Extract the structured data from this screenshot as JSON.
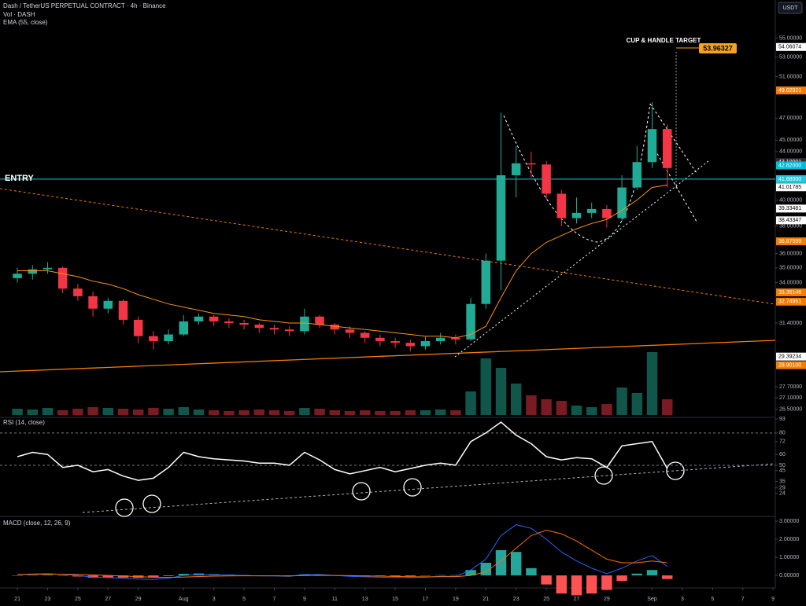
{
  "chart_data": [
    {
      "type": "candlestick",
      "title": "Dash / TetherUS PERPETUAL CONTRACT · 4h · Binance",
      "axis_unit": "USDT",
      "log_scale": true,
      "up_color": "#22ab94",
      "down_color": "#f23645",
      "xlim": [
        -1.15,
        50.15
      ],
      "xticks": [
        {
          "value": 0,
          "label": "21"
        },
        {
          "value": 2,
          "label": "23"
        },
        {
          "value": 4,
          "label": "25"
        },
        {
          "value": 6,
          "label": "27"
        },
        {
          "value": 8,
          "label": "29"
        },
        {
          "value": 11,
          "label": "Aug"
        },
        {
          "value": 13,
          "label": "3"
        },
        {
          "value": 15,
          "label": "5"
        },
        {
          "value": 17,
          "label": "7"
        },
        {
          "value": 19,
          "label": "9"
        },
        {
          "value": 21,
          "label": "11"
        },
        {
          "value": 23,
          "label": "13"
        },
        {
          "value": 25,
          "label": "15"
        },
        {
          "value": 27,
          "label": "17"
        },
        {
          "value": 29,
          "label": "19"
        },
        {
          "value": 31,
          "label": "21"
        },
        {
          "value": 33,
          "label": "23"
        },
        {
          "value": 35,
          "label": "25"
        },
        {
          "value": 37,
          "label": "27"
        },
        {
          "value": 39,
          "label": "29"
        },
        {
          "value": 42,
          "label": "Sep"
        },
        {
          "value": 44,
          "label": "3"
        },
        {
          "value": 46,
          "label": "5"
        },
        {
          "value": 48,
          "label": "7"
        },
        {
          "value": 50,
          "label": "9"
        }
      ],
      "ylim": [
        26.2,
        59.3
      ],
      "yticks": [
        {
          "value": 55,
          "label": "55.00000"
        },
        {
          "value": 53,
          "label": "53.00000"
        },
        {
          "value": 51,
          "label": "51.00000"
        },
        {
          "value": 47,
          "label": "47.00000"
        },
        {
          "value": 45,
          "label": "45.00000"
        },
        {
          "value": 44,
          "label": "44.00000"
        },
        {
          "value": 40,
          "label": "40.00000"
        },
        {
          "value": 38,
          "label": "38.00000"
        },
        {
          "value": 36,
          "label": "36.00000"
        },
        {
          "value": 35,
          "label": "35.00000"
        },
        {
          "value": 34,
          "label": "34.00000"
        },
        {
          "value": 31.4,
          "label": "31.40000"
        },
        {
          "value": 27.7,
          "label": "27.70000"
        },
        {
          "value": 27.1,
          "label": "27.10000"
        },
        {
          "value": 26.5,
          "label": "26.50000"
        }
      ],
      "price_labels": [
        {
          "value": 54.06074,
          "label": "54.06074",
          "color": "#ffffff",
          "text_color": "#000000"
        },
        {
          "value": 49.62921,
          "label": "49.62921",
          "color": "#f57c00",
          "text_color": "#ffffff"
        },
        {
          "value": 43.10001,
          "label": "43.10001",
          "color": "#2a2e39",
          "text_color": "#ffffff"
        },
        {
          "value": 42.82,
          "label": "42.82000",
          "color": "#00bcd4",
          "text_color": "#ffffff"
        },
        {
          "value": 41.01785,
          "label": "41.01785",
          "color": "#ffffff",
          "text_color": "#000000"
        },
        {
          "value": 39.33481,
          "label": "39.33481",
          "color": "#ffffff",
          "text_color": "#000000"
        },
        {
          "value": 38.43347,
          "label": "38.43347",
          "color": "#ffffff",
          "text_color": "#000000"
        },
        {
          "value": 36.87599,
          "label": "36.87599",
          "color": "#f57c00",
          "text_color": "#ffffff"
        },
        {
          "value": 33.35146,
          "label": "33.35146",
          "color": "#f57c00",
          "text_color": "#ffffff"
        },
        {
          "value": 32.74961,
          "label": "32.74961",
          "color": "#f57c00",
          "text_color": "#ffffff"
        },
        {
          "value": 29.39234,
          "label": "29.39234",
          "color": "#ffffff",
          "text_color": "#000000"
        },
        {
          "value": 28.901,
          "label": "28.90100",
          "color": "#f57c00",
          "text_color": "#ffffff"
        }
      ],
      "entry": {
        "label": "ENTRY",
        "value": 41.68,
        "value_label": "41.68000",
        "color": "#26c6da"
      },
      "target": {
        "label": "CUP & HANDLE TARGET",
        "value": 53.96327,
        "color": "#f7a21b"
      },
      "open": [
        34.3,
        34.6,
        34.9,
        35.0,
        33.6,
        33.1,
        32.3,
        32.8,
        31.6,
        30.6,
        30.3,
        30.7,
        31.5,
        31.8,
        31.5,
        31.4,
        31.3,
        31.1,
        31.0,
        30.9,
        31.8,
        31.3,
        31.0,
        30.8,
        30.5,
        30.3,
        30.2,
        30.0,
        30.3,
        30.5,
        30.4,
        32.6,
        35.5,
        42.0,
        43.0,
        42.9,
        40.5,
        38.6,
        39.0,
        39.3,
        38.6,
        41.0,
        43.1,
        46.0
      ],
      "high": [
        35.0,
        35.2,
        35.4,
        35.1,
        33.9,
        33.4,
        33.0,
        32.9,
        31.8,
        30.9,
        31.0,
        31.9,
        32.0,
        31.9,
        31.7,
        31.6,
        31.4,
        31.3,
        31.2,
        32.3,
        31.9,
        31.4,
        31.2,
        30.9,
        30.7,
        30.5,
        30.4,
        30.6,
        30.8,
        30.7,
        33.0,
        36.0,
        47.5,
        44.5,
        44.0,
        43.2,
        40.8,
        40.2,
        39.8,
        39.6,
        42.0,
        44.5,
        48.5,
        46.4
      ],
      "low": [
        34.0,
        34.2,
        34.6,
        33.3,
        32.8,
        31.8,
        32.0,
        31.3,
        30.2,
        29.8,
        30.1,
        30.6,
        31.3,
        31.2,
        31.1,
        31.0,
        30.8,
        30.7,
        30.6,
        30.7,
        31.1,
        30.7,
        30.5,
        30.2,
        30.0,
        29.9,
        29.7,
        29.8,
        30.1,
        30.1,
        30.3,
        32.3,
        33.5,
        40.2,
        41.8,
        40.0,
        38.0,
        38.2,
        38.6,
        37.9,
        38.4,
        40.8,
        42.6,
        41.0
      ],
      "close": [
        34.6,
        34.9,
        35.0,
        33.6,
        33.1,
        32.3,
        32.8,
        31.6,
        30.6,
        30.3,
        30.7,
        31.5,
        31.8,
        31.5,
        31.4,
        31.3,
        31.1,
        31.0,
        30.9,
        31.8,
        31.3,
        31.0,
        30.8,
        30.5,
        30.3,
        30.2,
        30.0,
        30.3,
        30.5,
        30.4,
        32.6,
        35.5,
        42.0,
        43.0,
        42.9,
        40.5,
        38.6,
        39.0,
        39.3,
        38.6,
        41.0,
        43.1,
        46.0,
        42.6
      ],
      "volume": {
        "name": "Vol · DASH",
        "ylim": [
          0,
          100
        ],
        "values": [
          8,
          7,
          9,
          6,
          8,
          10,
          9,
          8,
          7,
          9,
          8,
          10,
          7,
          6,
          5,
          6,
          7,
          6,
          5,
          9,
          8,
          6,
          5,
          6,
          5,
          5,
          6,
          6,
          7,
          6,
          30,
          72,
          60,
          40,
          25,
          20,
          18,
          12,
          10,
          14,
          35,
          28,
          80,
          20
        ]
      },
      "series": [
        {
          "name": "EMA (55, close)",
          "color": "#f7931a",
          "values": [
            34.8,
            34.8,
            34.8,
            34.6,
            34.4,
            34.1,
            33.9,
            33.6,
            33.2,
            32.9,
            32.6,
            32.4,
            32.2,
            32.0,
            31.9,
            31.8,
            31.6,
            31.5,
            31.4,
            31.4,
            31.3,
            31.2,
            31.1,
            31.0,
            30.9,
            30.8,
            30.7,
            30.6,
            30.6,
            30.5,
            30.7,
            31.2,
            33.0,
            34.8,
            36.0,
            36.8,
            37.3,
            37.8,
            38.2,
            38.5,
            39.2,
            40.0,
            41.0,
            41.2
          ]
        }
      ]
    },
    {
      "type": "line",
      "title": "RSI (14, close)",
      "color": "#ffffff",
      "ylim": [
        4,
        93
      ],
      "yticks": [
        93,
        80,
        72,
        60,
        50,
        45,
        35,
        29,
        24
      ],
      "bands": [
        80,
        50
      ],
      "values": [
        58,
        62,
        60,
        48,
        50,
        44,
        46,
        40,
        36,
        38,
        48,
        62,
        58,
        56,
        55,
        54,
        52,
        52,
        50,
        62,
        55,
        46,
        42,
        45,
        48,
        44,
        47,
        50,
        52,
        50,
        72,
        80,
        90,
        78,
        70,
        58,
        55,
        57,
        56,
        48,
        68,
        70,
        72,
        47
      ]
    },
    {
      "type": "macd",
      "title": "MACD (close, 12, 26, 9)",
      "ylim": [
        -0.56,
        3.13
      ],
      "yticks": [
        {
          "value": 3,
          "label": "3.00000"
        },
        {
          "value": 2,
          "label": "2.00000"
        },
        {
          "value": 1,
          "label": "1.00000"
        },
        {
          "value": 0,
          "label": "0.00000"
        }
      ],
      "series": [
        {
          "color": "#2962ff",
          "values": [
            0.05,
            0.08,
            0.1,
            0.05,
            0.0,
            -0.1,
            -0.12,
            -0.15,
            -0.2,
            -0.22,
            -0.15,
            0.0,
            0.05,
            0.03,
            0.02,
            0.0,
            -0.02,
            -0.03,
            -0.05,
            0.05,
            0.05,
            0.0,
            -0.05,
            -0.08,
            -0.1,
            -0.12,
            -0.12,
            -0.1,
            -0.05,
            -0.05,
            0.3,
            0.9,
            2.2,
            2.8,
            2.6,
            2.0,
            1.3,
            0.8,
            0.4,
            0.1,
            0.4,
            0.8,
            1.1,
            0.5
          ]
        },
        {
          "color": "#ff6d00",
          "values": [
            0.05,
            0.06,
            0.07,
            0.07,
            0.06,
            0.03,
            0.0,
            -0.03,
            -0.07,
            -0.1,
            -0.11,
            -0.09,
            -0.06,
            -0.04,
            -0.03,
            -0.02,
            -0.02,
            -0.02,
            -0.03,
            -0.01,
            0.0,
            0.0,
            -0.01,
            -0.03,
            -0.04,
            -0.06,
            -0.07,
            -0.08,
            -0.07,
            -0.07,
            0.0,
            0.2,
            0.8,
            1.5,
            2.2,
            2.5,
            2.3,
            1.9,
            1.4,
            0.9,
            0.7,
            0.7,
            0.8,
            0.7
          ]
        }
      ],
      "histogram": {
        "up_color": "#26a69a",
        "down_color": "#ff5252",
        "values": [
          0,
          0.02,
          0.03,
          -0.02,
          -0.06,
          -0.13,
          -0.12,
          -0.12,
          -0.13,
          -0.12,
          -0.04,
          0.09,
          0.11,
          0.07,
          0.05,
          0.02,
          0,
          -0.01,
          -0.02,
          0.06,
          0.05,
          0,
          -0.04,
          -0.05,
          -0.06,
          -0.06,
          -0.05,
          -0.02,
          0.02,
          0.02,
          0.3,
          0.7,
          1.4,
          1.3,
          0.4,
          -0.5,
          -1.0,
          -1.1,
          -1.0,
          -0.8,
          -0.3,
          0.1,
          0.3,
          -0.2
        ]
      }
    }
  ]
}
